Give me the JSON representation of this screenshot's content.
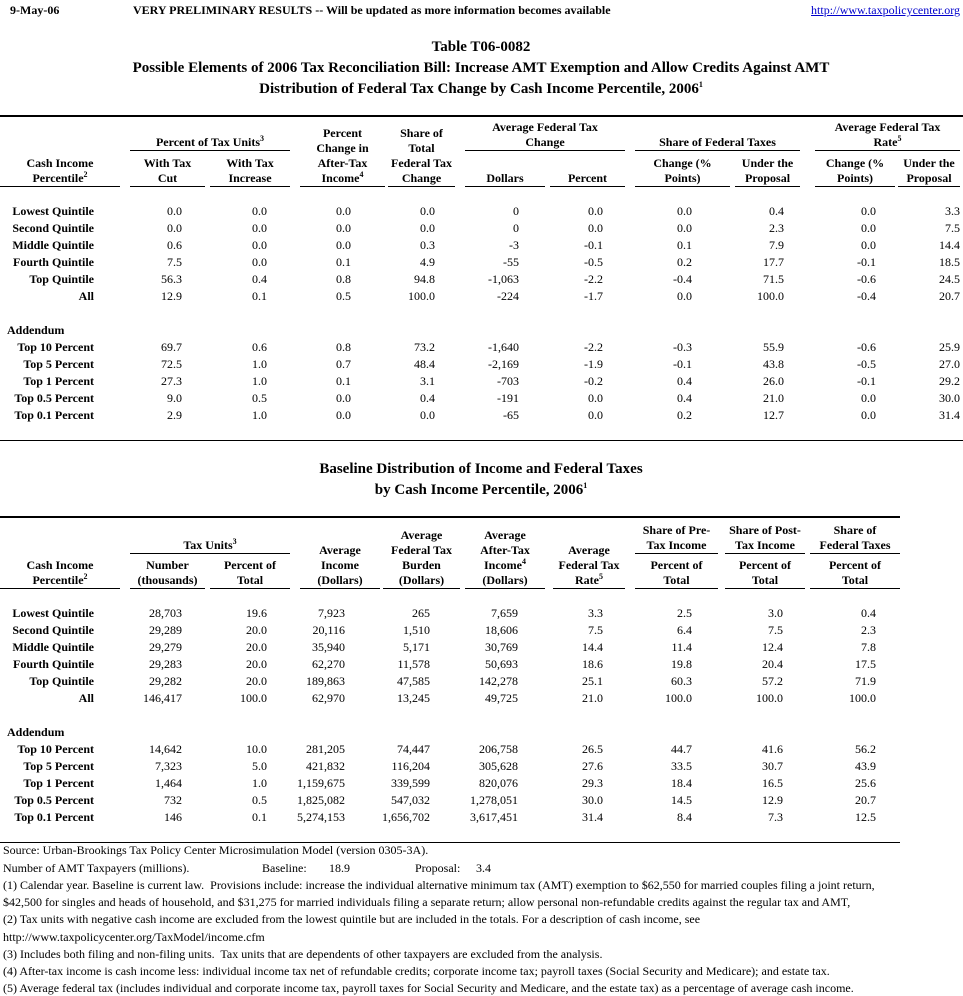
{
  "header": {
    "date": "9-May-06",
    "notice": "VERY PRELIMINARY RESULTS -- Will be updated as more information becomes available",
    "url": "http://www.taxpolicycenter.org"
  },
  "table1": {
    "title": [
      "Table T06-0082",
      "Possible Elements of 2006 Tax Reconciliation Bill: Increase AMT Exemption and Allow Credits Against AMT",
      {
        "text": "Distribution of Federal Tax Change by Cash Income Percentile, 2006",
        "sup": "1"
      }
    ],
    "header": [
      {
        "lines": [
          "Cash Income",
          {
            "text": "Percentile",
            "sup": "2"
          }
        ]
      },
      {
        "lines": [
          {
            "text": "Percent of Tax Units",
            "sup": "3"
          }
        ],
        "sub": [
          {
            "lines": [
              "With Tax",
              "Cut"
            ]
          },
          {
            "lines": [
              "With Tax",
              "Increase"
            ]
          }
        ]
      },
      {
        "lines": [
          "Percent",
          "Change in",
          "After-Tax",
          {
            "text": "Income",
            "sup": "4"
          }
        ]
      },
      {
        "lines": [
          "Share of",
          "Total",
          "Federal Tax",
          "Change"
        ]
      },
      {
        "lines": [
          "Average Federal Tax",
          "Change"
        ],
        "sub": [
          {
            "lines": [
              "Dollars"
            ]
          },
          {
            "lines": [
              "Percent"
            ]
          }
        ]
      },
      {
        "lines": [
          "Share of Federal Taxes"
        ],
        "sub": [
          {
            "lines": [
              "Change (%",
              "Points)"
            ]
          },
          {
            "lines": [
              "Under the",
              "Proposal"
            ]
          }
        ]
      },
      {
        "lines": [
          "Average Federal Tax",
          {
            "text": "Rate",
            "sup": "5"
          }
        ],
        "sub": [
          {
            "lines": [
              "Change (%",
              "Points)"
            ]
          },
          {
            "lines": [
              "Under the",
              "Proposal"
            ]
          }
        ]
      }
    ],
    "sections": [
      {
        "rows": [
          {
            "label": "Lowest Quintile",
            "values": [
              "0.0",
              "0.0",
              "0.0",
              "0.0",
              "0",
              "0.0",
              "0.0",
              "0.4",
              "0.0",
              "3.3"
            ]
          },
          {
            "label": "Second Quintile",
            "values": [
              "0.0",
              "0.0",
              "0.0",
              "0.0",
              "0",
              "0.0",
              "0.0",
              "2.3",
              "0.0",
              "7.5"
            ]
          },
          {
            "label": "Middle Quintile",
            "values": [
              "0.6",
              "0.0",
              "0.0",
              "0.3",
              "-3",
              "-0.1",
              "0.1",
              "7.9",
              "0.0",
              "14.4"
            ]
          },
          {
            "label": "Fourth Quintile",
            "values": [
              "7.5",
              "0.0",
              "0.1",
              "4.9",
              "-55",
              "-0.5",
              "0.2",
              "17.7",
              "-0.1",
              "18.5"
            ]
          },
          {
            "label": "Top Quintile",
            "values": [
              "56.3",
              "0.4",
              "0.8",
              "94.8",
              "-1,063",
              "-2.2",
              "-0.4",
              "71.5",
              "-0.6",
              "24.5"
            ]
          },
          {
            "label": "All",
            "values": [
              "12.9",
              "0.1",
              "0.5",
              "100.0",
              "-224",
              "-1.7",
              "0.0",
              "100.0",
              "-0.4",
              "20.7"
            ]
          }
        ]
      },
      {
        "title": "Addendum",
        "rows": [
          {
            "label": "Top 10 Percent",
            "values": [
              "69.7",
              "0.6",
              "0.8",
              "73.2",
              "-1,640",
              "-2.2",
              "-0.3",
              "55.9",
              "-0.6",
              "25.9"
            ]
          },
          {
            "label": "Top 5 Percent",
            "values": [
              "72.5",
              "1.0",
              "0.7",
              "48.4",
              "-2,169",
              "-1.9",
              "-0.1",
              "43.8",
              "-0.5",
              "27.0"
            ]
          },
          {
            "label": "Top 1 Percent",
            "values": [
              "27.3",
              "1.0",
              "0.1",
              "3.1",
              "-703",
              "-0.2",
              "0.4",
              "26.0",
              "-0.1",
              "29.2"
            ]
          },
          {
            "label": "Top 0.5 Percent",
            "values": [
              "9.0",
              "0.5",
              "0.0",
              "0.4",
              "-191",
              "0.0",
              "0.4",
              "21.0",
              "0.0",
              "30.0"
            ]
          },
          {
            "label": "Top 0.1 Percent",
            "values": [
              "2.9",
              "1.0",
              "0.0",
              "0.0",
              "-65",
              "0.0",
              "0.2",
              "12.7",
              "0.0",
              "31.4"
            ]
          }
        ]
      }
    ]
  },
  "table2": {
    "title": [
      "Baseline Distribution of Income and Federal Taxes",
      {
        "text": "by Cash Income Percentile, 2006",
        "sup": "1"
      }
    ],
    "header": [
      {
        "lines": [
          "Cash Income",
          {
            "text": "Percentile",
            "sup": "2"
          }
        ]
      },
      {
        "lines": [
          {
            "text": "Tax Units",
            "sup": "3"
          }
        ],
        "sub": [
          {
            "lines": [
              "Number",
              "(thousands)"
            ]
          },
          {
            "lines": [
              "Percent of",
              "Total"
            ]
          }
        ]
      },
      {
        "lines": [
          "Average",
          "Income",
          "(Dollars)"
        ]
      },
      {
        "lines": [
          "Average",
          "Federal Tax",
          "Burden",
          "(Dollars)"
        ]
      },
      {
        "lines": [
          "Average",
          "After-Tax",
          {
            "text": "Income",
            "sup": "4"
          },
          "(Dollars)"
        ]
      },
      {
        "lines": [
          "Average",
          "Federal Tax",
          {
            "text": "Rate",
            "sup": "5"
          }
        ]
      },
      {
        "lines": [
          "Share of Pre-",
          "Tax Income"
        ],
        "sub": [
          {
            "lines": [
              "Percent of",
              "Total"
            ]
          }
        ]
      },
      {
        "lines": [
          "Share of Post-",
          "Tax Income"
        ],
        "sub": [
          {
            "lines": [
              "Percent of",
              "Total"
            ]
          }
        ]
      },
      {
        "lines": [
          "Share of",
          "Federal Taxes"
        ],
        "sub": [
          {
            "lines": [
              "Percent of",
              "Total"
            ]
          }
        ]
      }
    ],
    "sections": [
      {
        "rows": [
          {
            "label": "Lowest Quintile",
            "values": [
              "28,703",
              "19.6",
              "7,923",
              "265",
              "7,659",
              "3.3",
              "2.5",
              "3.0",
              "0.4"
            ]
          },
          {
            "label": "Second Quintile",
            "values": [
              "29,289",
              "20.0",
              "20,116",
              "1,510",
              "18,606",
              "7.5",
              "6.4",
              "7.5",
              "2.3"
            ]
          },
          {
            "label": "Middle Quintile",
            "values": [
              "29,279",
              "20.0",
              "35,940",
              "5,171",
              "30,769",
              "14.4",
              "11.4",
              "12.4",
              "7.8"
            ]
          },
          {
            "label": "Fourth Quintile",
            "values": [
              "29,283",
              "20.0",
              "62,270",
              "11,578",
              "50,693",
              "18.6",
              "19.8",
              "20.4",
              "17.5"
            ]
          },
          {
            "label": "Top Quintile",
            "values": [
              "29,282",
              "20.0",
              "189,863",
              "47,585",
              "142,278",
              "25.1",
              "60.3",
              "57.2",
              "71.9"
            ]
          },
          {
            "label": "All",
            "values": [
              "146,417",
              "100.0",
              "62,970",
              "13,245",
              "49,725",
              "21.0",
              "100.0",
              "100.0",
              "100.0"
            ]
          }
        ]
      },
      {
        "title": "Addendum",
        "rows": [
          {
            "label": "Top 10 Percent",
            "values": [
              "14,642",
              "10.0",
              "281,205",
              "74,447",
              "206,758",
              "26.5",
              "44.7",
              "41.6",
              "56.2"
            ]
          },
          {
            "label": "Top 5 Percent",
            "values": [
              "7,323",
              "5.0",
              "421,832",
              "116,204",
              "305,628",
              "27.6",
              "33.5",
              "30.7",
              "43.9"
            ]
          },
          {
            "label": "Top 1 Percent",
            "values": [
              "1,464",
              "1.0",
              "1,159,675",
              "339,599",
              "820,076",
              "29.3",
              "18.4",
              "16.5",
              "25.6"
            ]
          },
          {
            "label": "Top 0.5 Percent",
            "values": [
              "732",
              "0.5",
              "1,825,082",
              "547,032",
              "1,278,051",
              "30.0",
              "14.5",
              "12.9",
              "20.7"
            ]
          },
          {
            "label": "Top 0.1 Percent",
            "values": [
              "146",
              "0.1",
              "5,274,153",
              "1,656,702",
              "3,617,451",
              "31.4",
              "8.4",
              "7.3",
              "12.5"
            ]
          }
        ]
      }
    ]
  },
  "notes": {
    "source": "Source: Urban-Brookings Tax Policy Center Microsimulation Model (version 0305-3A).",
    "amt": {
      "label": "Number of AMT Taxpayers (millions).",
      "baseline_label": "Baseline:",
      "baseline": "18.9",
      "proposal_label": "Proposal:",
      "proposal": "3.4"
    },
    "lines": [
      "(1) Calendar year. Baseline is current law.  Provisions include: increase the individual alternative minimum tax (AMT) exemption to $62,550 for married couples filing a joint return,",
      "$42,500 for singles and heads of household, and $31,275 for married individuals filing a separate return; allow personal non-refundable credits against the regular tax and AMT,",
      "(2) Tax units with negative cash income are excluded from the lowest quintile but are included in the totals. For a description of cash income, see",
      "http://www.taxpolicycenter.org/TaxModel/income.cfm",
      "(3) Includes both filing and non-filing units.  Tax units that are dependents of other taxpayers are excluded from the analysis.",
      "(4) After-tax income is cash income less: individual income tax net of refundable credits; corporate income tax; payroll taxes (Social Security and Medicare); and estate tax.",
      "(5) Average federal tax (includes individual and corporate income tax, payroll taxes for Social Security and Medicare, and the estate tax) as a percentage of average cash income."
    ]
  }
}
